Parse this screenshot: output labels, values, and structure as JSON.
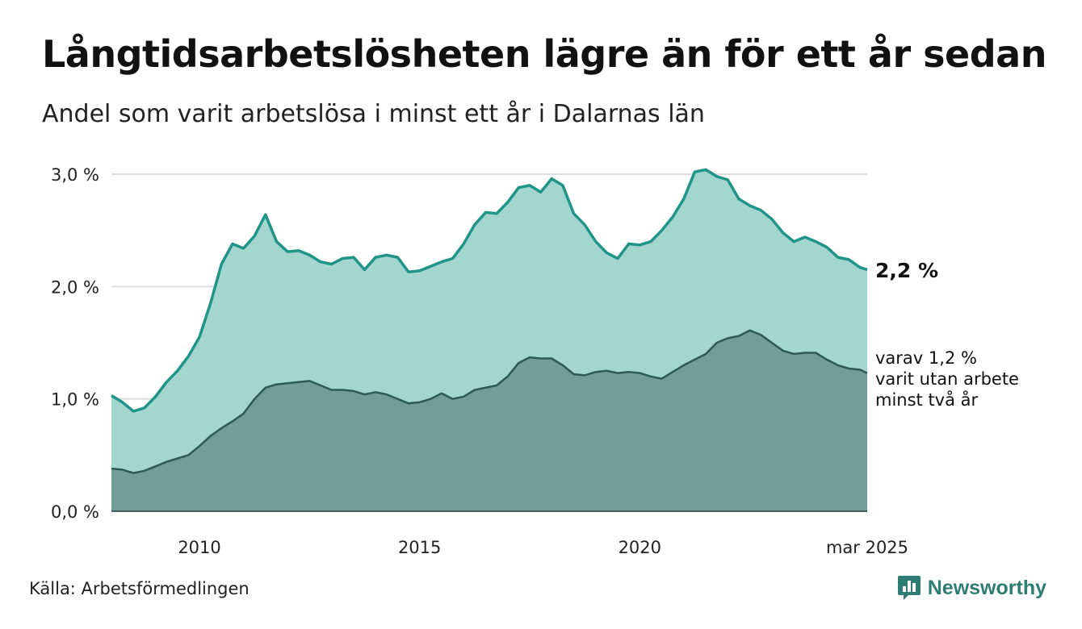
{
  "header": {
    "title": "Långtidsarbetslösheten lägre än för ett år sedan",
    "subtitle": "Andel som varit arbetslösa i minst ett år i Dalarnas län"
  },
  "annotations": {
    "end_value": "2,2 %",
    "sub_line1": "varav 1,2 %",
    "sub_line2": "varit utan arbete",
    "sub_line3": "minst två år"
  },
  "footer": {
    "source": "Källa: Arbetsförmedlingen",
    "brand": "Newsworthy",
    "brand_icon": "bar-chart-logo-icon"
  },
  "colors": {
    "total_line": "#1f9487",
    "total_fill": "#a4d6d0",
    "sub_fill": "#729e97",
    "sub_line": "#2d5a54",
    "grid": "#dddddd"
  },
  "chart_data": {
    "type": "area",
    "title": "Långtidsarbetslösheten lägre än för ett år sedan",
    "ylim": [
      0,
      3
    ],
    "yticks": [
      0,
      1,
      2,
      3
    ],
    "ytick_labels": [
      "0,0 %",
      "1,0 %",
      "2,0 %",
      "3,0 %"
    ],
    "xlim": [
      "2008-01",
      "2025-03"
    ],
    "xtick_labels": [
      {
        "x": "2010-01",
        "label": "2010"
      },
      {
        "x": "2015-01",
        "label": "2015"
      },
      {
        "x": "2020-01",
        "label": "2020"
      },
      {
        "x": "2025-03",
        "label": "mar 2025"
      }
    ],
    "grid": true,
    "series": [
      {
        "name": "",
        "points": [
          [
            "2008-01",
            1.03
          ],
          [
            "2008-04",
            0.97
          ],
          [
            "2008-07",
            0.89
          ],
          [
            "2008-10",
            0.92
          ],
          [
            "2009-01",
            1.02
          ],
          [
            "2009-04",
            1.15
          ],
          [
            "2009-07",
            1.25
          ],
          [
            "2009-10",
            1.38
          ],
          [
            "2010-01",
            1.55
          ],
          [
            "2010-04",
            1.85
          ],
          [
            "2010-07",
            2.2
          ],
          [
            "2010-10",
            2.38
          ],
          [
            "2011-01",
            2.34
          ],
          [
            "2011-04",
            2.45
          ],
          [
            "2011-07",
            2.64
          ],
          [
            "2011-10",
            2.4
          ],
          [
            "2012-01",
            2.31
          ],
          [
            "2012-04",
            2.32
          ],
          [
            "2012-07",
            2.28
          ],
          [
            "2012-10",
            2.22
          ],
          [
            "2013-01",
            2.2
          ],
          [
            "2013-04",
            2.25
          ],
          [
            "2013-07",
            2.26
          ],
          [
            "2013-10",
            2.15
          ],
          [
            "2014-01",
            2.26
          ],
          [
            "2014-04",
            2.28
          ],
          [
            "2014-07",
            2.26
          ],
          [
            "2014-10",
            2.13
          ],
          [
            "2015-01",
            2.14
          ],
          [
            "2015-04",
            2.18
          ],
          [
            "2015-07",
            2.22
          ],
          [
            "2015-10",
            2.25
          ],
          [
            "2016-01",
            2.38
          ],
          [
            "2016-04",
            2.55
          ],
          [
            "2016-07",
            2.66
          ],
          [
            "2016-10",
            2.65
          ],
          [
            "2017-01",
            2.75
          ],
          [
            "2017-04",
            2.88
          ],
          [
            "2017-07",
            2.9
          ],
          [
            "2017-10",
            2.84
          ],
          [
            "2018-01",
            2.96
          ],
          [
            "2018-04",
            2.9
          ],
          [
            "2018-07",
            2.65
          ],
          [
            "2018-10",
            2.55
          ],
          [
            "2019-01",
            2.4
          ],
          [
            "2019-04",
            2.3
          ],
          [
            "2019-07",
            2.25
          ],
          [
            "2019-10",
            2.38
          ],
          [
            "2020-01",
            2.37
          ],
          [
            "2020-04",
            2.4
          ],
          [
            "2020-07",
            2.5
          ],
          [
            "2020-10",
            2.62
          ],
          [
            "2021-01",
            2.78
          ],
          [
            "2021-04",
            3.02
          ],
          [
            "2021-07",
            3.04
          ],
          [
            "2021-10",
            2.98
          ],
          [
            "2022-01",
            2.95
          ],
          [
            "2022-04",
            2.78
          ],
          [
            "2022-07",
            2.72
          ],
          [
            "2022-10",
            2.68
          ],
          [
            "2023-01",
            2.6
          ],
          [
            "2023-04",
            2.48
          ],
          [
            "2023-07",
            2.4
          ],
          [
            "2023-10",
            2.44
          ],
          [
            "2024-01",
            2.4
          ],
          [
            "2024-04",
            2.35
          ],
          [
            "2024-07",
            2.26
          ],
          [
            "2024-10",
            2.24
          ],
          [
            "2025-01",
            2.17
          ],
          [
            "2025-03",
            2.15
          ]
        ]
      },
      {
        "name": "",
        "points": [
          [
            "2008-01",
            0.38
          ],
          [
            "2008-04",
            0.37
          ],
          [
            "2008-07",
            0.34
          ],
          [
            "2008-10",
            0.36
          ],
          [
            "2009-01",
            0.4
          ],
          [
            "2009-04",
            0.44
          ],
          [
            "2009-07",
            0.47
          ],
          [
            "2009-10",
            0.5
          ],
          [
            "2010-01",
            0.58
          ],
          [
            "2010-04",
            0.67
          ],
          [
            "2010-07",
            0.74
          ],
          [
            "2010-10",
            0.8
          ],
          [
            "2011-01",
            0.87
          ],
          [
            "2011-04",
            1.0
          ],
          [
            "2011-07",
            1.1
          ],
          [
            "2011-10",
            1.13
          ],
          [
            "2012-01",
            1.14
          ],
          [
            "2012-04",
            1.15
          ],
          [
            "2012-07",
            1.16
          ],
          [
            "2012-10",
            1.12
          ],
          [
            "2013-01",
            1.08
          ],
          [
            "2013-04",
            1.08
          ],
          [
            "2013-07",
            1.07
          ],
          [
            "2013-10",
            1.04
          ],
          [
            "2014-01",
            1.06
          ],
          [
            "2014-04",
            1.04
          ],
          [
            "2014-07",
            1.0
          ],
          [
            "2014-10",
            0.96
          ],
          [
            "2015-01",
            0.97
          ],
          [
            "2015-04",
            1.0
          ],
          [
            "2015-07",
            1.05
          ],
          [
            "2015-10",
            1.0
          ],
          [
            "2016-01",
            1.02
          ],
          [
            "2016-04",
            1.08
          ],
          [
            "2016-07",
            1.1
          ],
          [
            "2016-10",
            1.12
          ],
          [
            "2017-01",
            1.2
          ],
          [
            "2017-04",
            1.32
          ],
          [
            "2017-07",
            1.37
          ],
          [
            "2017-10",
            1.36
          ],
          [
            "2018-01",
            1.36
          ],
          [
            "2018-04",
            1.3
          ],
          [
            "2018-07",
            1.22
          ],
          [
            "2018-10",
            1.21
          ],
          [
            "2019-01",
            1.24
          ],
          [
            "2019-04",
            1.25
          ],
          [
            "2019-07",
            1.23
          ],
          [
            "2019-10",
            1.24
          ],
          [
            "2020-01",
            1.23
          ],
          [
            "2020-04",
            1.2
          ],
          [
            "2020-07",
            1.18
          ],
          [
            "2020-10",
            1.24
          ],
          [
            "2021-01",
            1.3
          ],
          [
            "2021-04",
            1.35
          ],
          [
            "2021-07",
            1.4
          ],
          [
            "2021-10",
            1.5
          ],
          [
            "2022-01",
            1.54
          ],
          [
            "2022-04",
            1.56
          ],
          [
            "2022-07",
            1.61
          ],
          [
            "2022-10",
            1.57
          ],
          [
            "2023-01",
            1.5
          ],
          [
            "2023-04",
            1.43
          ],
          [
            "2023-07",
            1.4
          ],
          [
            "2023-10",
            1.41
          ],
          [
            "2024-01",
            1.41
          ],
          [
            "2024-04",
            1.35
          ],
          [
            "2024-07",
            1.3
          ],
          [
            "2024-10",
            1.27
          ],
          [
            "2025-01",
            1.26
          ],
          [
            "2025-03",
            1.23
          ]
        ]
      }
    ]
  }
}
